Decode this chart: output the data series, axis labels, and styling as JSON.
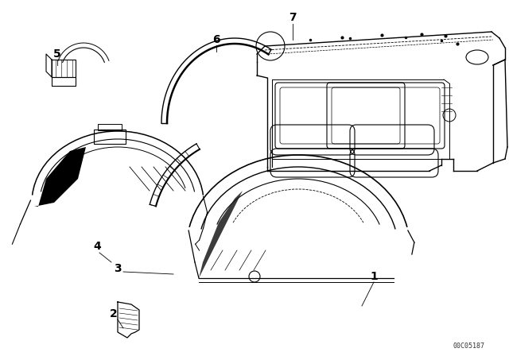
{
  "background_color": "#ffffff",
  "line_color": "#000000",
  "catalog_number": "00C05187",
  "fig_width": 6.4,
  "fig_height": 4.48,
  "dpi": 100
}
